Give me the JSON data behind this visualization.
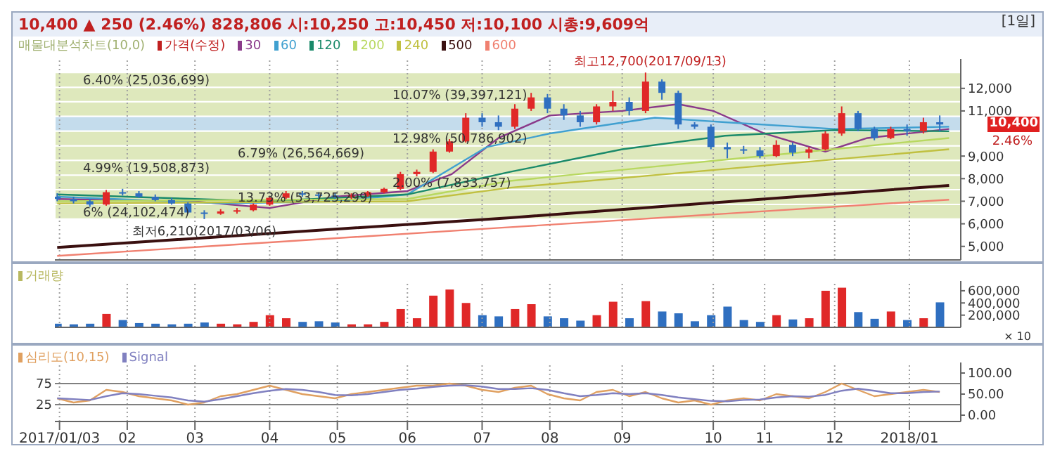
{
  "chart_data": [
    {
      "type": "candlestick",
      "title": "10,400 ▲ 250 (2.46%)   828,806   시:10,250 고:10,450 저:10,100 시총:9,609억",
      "legend_title": "매물대분석차트(10,0)",
      "legend": "top left",
      "grid": "x",
      "tick_labels": "y",
      "x": [
        "2017-01-02",
        "2017-01-09",
        "2017-01-16",
        "2017-01-23",
        "2017-01-30",
        "2017-02-06",
        "2017-02-13",
        "2017-02-20",
        "2017-02-27",
        "2017-03-06",
        "2017-03-13",
        "2017-03-20",
        "2017-03-27",
        "2017-04-03",
        "2017-04-10",
        "2017-04-17",
        "2017-04-24",
        "2017-05-01",
        "2017-05-08",
        "2017-05-15",
        "2017-05-22",
        "2017-05-29",
        "2017-06-05",
        "2017-06-12",
        "2017-06-19",
        "2017-06-26",
        "2017-07-03",
        "2017-07-10",
        "2017-07-17",
        "2017-07-24",
        "2017-07-31",
        "2017-08-07",
        "2017-08-14",
        "2017-08-21",
        "2017-08-28",
        "2017-09-04",
        "2017-09-11",
        "2017-09-18",
        "2017-09-25",
        "2017-10-02",
        "2017-10-09",
        "2017-10-16",
        "2017-10-23",
        "2017-10-30",
        "2017-11-06",
        "2017-11-13",
        "2017-11-20",
        "2017-11-27",
        "2017-12-04",
        "2017-12-11",
        "2017-12-18",
        "2017-12-25",
        "2018-01-01",
        "2018-01-08",
        "2018-01-15"
      ],
      "xlim": [
        "2017-01-01",
        "2018-01-24"
      ],
      "xticks": [
        {
          "value": "2017-01-03",
          "label": null
        },
        {
          "value": "2017-02-01",
          "label": null
        },
        {
          "value": "2017-03-02",
          "label": null
        },
        {
          "value": "2017-04-03",
          "label": null
        },
        {
          "value": "2017-05-02",
          "label": null
        },
        {
          "value": "2017-06-01",
          "label": null
        },
        {
          "value": "2017-07-03",
          "label": null
        },
        {
          "value": "2017-08-01",
          "label": null
        },
        {
          "value": "2017-09-01",
          "label": null
        },
        {
          "value": "2017-10-10",
          "label": null
        },
        {
          "value": "2017-11-01",
          "label": null
        },
        {
          "value": "2017-12-01",
          "label": null
        },
        {
          "value": "2018-01-02",
          "label": null
        }
      ],
      "ylim": [
        4400,
        13300
      ],
      "yticks": [
        {
          "value": 5000,
          "label": "5,000"
        },
        {
          "value": 6000,
          "label": "6,000"
        },
        {
          "value": 7000,
          "label": "7,000"
        },
        {
          "value": 8000,
          "label": "8,000"
        },
        {
          "value": 9000,
          "label": "9,000"
        },
        {
          "value": 11000,
          "label": "11,000"
        },
        {
          "value": 12000,
          "label": "12,000"
        }
      ],
      "bands": [
        {
          "axis": "y",
          "from": 6210,
          "to": 6860,
          "label": "6% (24,102,474)",
          "color": "#c8d890"
        },
        {
          "axis": "y",
          "from": 6860,
          "to": 7510,
          "label": "13.73% (53,725,299)",
          "color": "#c8d890"
        },
        {
          "axis": "y",
          "from": 7510,
          "to": 8160,
          "label": "2.00% (7,833,757)",
          "color": "#c8d890"
        },
        {
          "axis": "y",
          "from": 8160,
          "to": 8810,
          "label": "4.99% (19,508,873)",
          "color": "#c8d890"
        },
        {
          "axis": "y",
          "from": 8810,
          "to": 9460,
          "label": "6.79% (26,564,669)",
          "color": "#c8d890"
        },
        {
          "axis": "y",
          "from": 9460,
          "to": 10110,
          "label": "12.98% (50,786,902)",
          "color": "#c8d890"
        },
        {
          "axis": "y",
          "from": 10110,
          "to": 10760,
          "label": null,
          "color": "#9cc4e0"
        },
        {
          "axis": "y",
          "from": 10760,
          "to": 11410,
          "label": null,
          "color": "#c8d890"
        },
        {
          "axis": "y",
          "from": 11410,
          "to": 12050,
          "label": "10.07% (39,397,121)",
          "color": "#c8d890"
        },
        {
          "axis": "y",
          "from": 12050,
          "to": 12700,
          "label": "6.40% (25,036,699)",
          "color": "#c8d890"
        }
      ],
      "annotations": [
        {
          "text": "최고12,700(2017/09/13)",
          "x": "2017-09-13",
          "y": 12700
        },
        {
          "text": "최저6,210(2017/03/06)",
          "x": "2017-03-06",
          "y": 6210
        },
        "[1일]",
        "10,400",
        "2.46%"
      ],
      "series": [
        {
          "type": "candlestick",
          "name": "가격(수정)",
          "color": "#c02020",
          "colors": [
            "#2f6fc0",
            "#2f6fc0",
            "#2f6fc0",
            "#e02828",
            "#2f6fc0",
            "#2f6fc0",
            "#2f6fc0",
            "#2f6fc0",
            "#2f6fc0",
            "#2f6fc0",
            "#e02828",
            "#e02828",
            "#e02828",
            "#e02828",
            "#e02828",
            "#2f6fc0",
            "#2f6fc0",
            "#2f6fc0",
            "#e02828",
            "#e02828",
            "#e02828",
            "#e02828",
            "#e02828",
            "#e02828",
            "#e02828",
            "#e02828",
            "#2f6fc0",
            "#2f6fc0",
            "#e02828",
            "#e02828",
            "#2f6fc0",
            "#2f6fc0",
            "#2f6fc0",
            "#e02828",
            "#e02828",
            "#2f6fc0",
            "#e02828",
            "#2f6fc0",
            "#2f6fc0",
            "#2f6fc0",
            "#2f6fc0",
            "#2f6fc0",
            "#2f6fc0",
            "#2f6fc0",
            "#e02828",
            "#2f6fc0",
            "#e02828",
            "#e02828",
            "#e02828",
            "#2f6fc0",
            "#2f6fc0",
            "#e02828",
            "#2f6fc0",
            "#e02828",
            "#2f6fc0"
          ],
          "ohlc": [
            [
              7200,
              7350,
              7000,
              7100
            ],
            [
              7100,
              7200,
              6900,
              7000
            ],
            [
              7000,
              7100,
              6750,
              6850
            ],
            [
              6850,
              7500,
              6800,
              7400
            ],
            [
              7400,
              7550,
              7250,
              7350
            ],
            [
              7350,
              7450,
              7150,
              7200
            ],
            [
              7200,
              7300,
              7000,
              7050
            ],
            [
              7050,
              7150,
              6850,
              6900
            ],
            [
              6900,
              6950,
              6450,
              6500
            ],
            [
              6500,
              6600,
              6210,
              6450
            ],
            [
              6450,
              6650,
              6400,
              6550
            ],
            [
              6550,
              6700,
              6450,
              6600
            ],
            [
              6600,
              6900,
              6550,
              6850
            ],
            [
              6850,
              7200,
              6800,
              7150
            ],
            [
              7150,
              7450,
              7100,
              7350
            ],
            [
              7350,
              7450,
              7200,
              7300
            ],
            [
              7300,
              7400,
              7150,
              7250
            ],
            [
              7250,
              7350,
              7100,
              7200
            ],
            [
              7200,
              7350,
              7100,
              7250
            ],
            [
              7250,
              7450,
              7200,
              7400
            ],
            [
              7400,
              7600,
              7350,
              7550
            ],
            [
              7550,
              8300,
              7500,
              8200
            ],
            [
              8200,
              8400,
              8100,
              8300
            ],
            [
              8300,
              9300,
              8250,
              9200
            ],
            [
              9200,
              9750,
              9150,
              9650
            ],
            [
              9650,
              10900,
              9600,
              10700
            ],
            [
              10700,
              10900,
              10300,
              10500
            ],
            [
              10500,
              10800,
              10150,
              10300
            ],
            [
              10300,
              11300,
              10200,
              11100
            ],
            [
              11100,
              11800,
              11000,
              11600
            ],
            [
              11600,
              11750,
              10900,
              11100
            ],
            [
              11100,
              11300,
              10600,
              10800
            ],
            [
              10800,
              11000,
              10300,
              10500
            ],
            [
              10500,
              11300,
              10400,
              11200
            ],
            [
              11200,
              11900,
              11000,
              11400
            ],
            [
              11400,
              11600,
              10800,
              11000
            ],
            [
              11000,
              12700,
              10900,
              12300
            ],
            [
              12300,
              12400,
              11500,
              11800
            ],
            [
              11800,
              11900,
              10200,
              10400
            ],
            [
              10400,
              10500,
              10200,
              10300
            ],
            [
              10300,
              10400,
              9300,
              9400
            ],
            [
              9400,
              9600,
              8900,
              9300
            ],
            [
              9300,
              9450,
              9100,
              9250
            ],
            [
              9250,
              9400,
              8900,
              9000
            ],
            [
              9000,
              9700,
              8950,
              9500
            ],
            [
              9500,
              9600,
              9000,
              9150
            ],
            [
              9150,
              9400,
              8900,
              9300
            ],
            [
              9300,
              10100,
              9250,
              10000
            ],
            [
              10000,
              11200,
              9900,
              10900
            ],
            [
              10900,
              11000,
              10100,
              10200
            ],
            [
              10200,
              10300,
              9700,
              9800
            ],
            [
              9800,
              10300,
              9750,
              10200
            ],
            [
              10200,
              10400,
              9900,
              10100
            ],
            [
              10100,
              10700,
              10000,
              10500
            ],
            [
              10500,
              10800,
              10100,
              10400
            ]
          ]
        },
        {
          "type": "line",
          "name": "30",
          "color": "#8a3a8a",
          "x": [
            "2017-01-02",
            "2017-03-01",
            "2017-04-03",
            "2017-05-01",
            "2017-06-01",
            "2017-06-20",
            "2017-07-10",
            "2017-08-01",
            "2017-09-01",
            "2017-09-25",
            "2017-10-10",
            "2017-11-01",
            "2017-11-27",
            "2017-12-15",
            "2018-01-19"
          ],
          "values": [
            7100,
            7000,
            6700,
            7200,
            7450,
            8200,
            9800,
            10800,
            11000,
            11300,
            11000,
            10000,
            9200,
            9800,
            10200
          ]
        },
        {
          "type": "line",
          "name": "60",
          "color": "#40a0d0",
          "x": [
            "2017-01-02",
            "2017-03-15",
            "2017-05-01",
            "2017-06-01",
            "2017-07-05",
            "2017-08-01",
            "2017-09-15",
            "2017-10-15",
            "2017-12-01",
            "2018-01-19"
          ],
          "values": [
            7200,
            6900,
            7000,
            7300,
            9400,
            10000,
            10700,
            10500,
            10200,
            10300
          ]
        },
        {
          "type": "line",
          "name": "120",
          "color": "#1a8a6a",
          "x": [
            "2017-01-02",
            "2017-04-01",
            "2017-06-01",
            "2017-07-15",
            "2017-09-01",
            "2017-10-15",
            "2017-12-01",
            "2018-01-19"
          ],
          "values": [
            7300,
            7000,
            7300,
            8300,
            9300,
            9900,
            10150,
            10100
          ]
        },
        {
          "type": "line",
          "name": "200",
          "color": "#b8d860",
          "x": [
            "2017-01-02",
            "2017-06-01",
            "2017-07-15",
            "2017-10-01",
            "2018-01-19"
          ],
          "values": [
            7000,
            7100,
            7900,
            8700,
            9800
          ]
        },
        {
          "type": "line",
          "name": "240",
          "color": "#c0c040",
          "x": [
            "2017-01-02",
            "2017-06-01",
            "2017-07-15",
            "2017-10-01",
            "2018-01-19"
          ],
          "values": [
            6900,
            7000,
            7600,
            8300,
            9300
          ]
        },
        {
          "type": "line",
          "name": "500",
          "color": "#3a1010",
          "x": [
            "2017-01-02",
            "2017-07-15",
            "2018-01-19"
          ],
          "values": [
            4950,
            6270,
            7700
          ]
        },
        {
          "type": "line",
          "name": "600",
          "color": "#f08070",
          "x": [
            "2017-01-02",
            "2017-07-15",
            "2018-01-19"
          ],
          "values": [
            4580,
            5850,
            7070
          ]
        }
      ]
    },
    {
      "type": "bar",
      "legend": "top left",
      "grid": "x",
      "tick_labels": "y",
      "x": [
        "2017-01-02",
        "2017-01-09",
        "2017-01-16",
        "2017-01-23",
        "2017-01-30",
        "2017-02-06",
        "2017-02-13",
        "2017-02-20",
        "2017-02-27",
        "2017-03-06",
        "2017-03-13",
        "2017-03-20",
        "2017-03-27",
        "2017-04-03",
        "2017-04-10",
        "2017-04-17",
        "2017-04-24",
        "2017-05-01",
        "2017-05-08",
        "2017-05-15",
        "2017-05-22",
        "2017-05-29",
        "2017-06-05",
        "2017-06-12",
        "2017-06-19",
        "2017-06-26",
        "2017-07-03",
        "2017-07-10",
        "2017-07-17",
        "2017-07-24",
        "2017-07-31",
        "2017-08-07",
        "2017-08-14",
        "2017-08-21",
        "2017-08-28",
        "2017-09-04",
        "2017-09-11",
        "2017-09-18",
        "2017-09-25",
        "2017-10-02",
        "2017-10-09",
        "2017-10-16",
        "2017-10-23",
        "2017-10-30",
        "2017-11-06",
        "2017-11-13",
        "2017-11-20",
        "2017-11-27",
        "2017-12-04",
        "2017-12-11",
        "2017-12-18",
        "2017-12-25",
        "2018-01-01",
        "2018-01-08",
        "2018-01-15"
      ],
      "xlim": [
        "2017-01-01",
        "2018-01-24"
      ],
      "xticks": [
        {
          "value": "2017-01-03",
          "label": null
        },
        {
          "value": "2017-02-01",
          "label": null
        },
        {
          "value": "2017-03-02",
          "label": null
        },
        {
          "value": "2017-04-03",
          "label": null
        },
        {
          "value": "2017-05-02",
          "label": null
        },
        {
          "value": "2017-06-01",
          "label": null
        },
        {
          "value": "2017-07-03",
          "label": null
        },
        {
          "value": "2017-08-01",
          "label": null
        },
        {
          "value": "2017-09-01",
          "label": null
        },
        {
          "value": "2017-10-10",
          "label": null
        },
        {
          "value": "2017-11-01",
          "label": null
        },
        {
          "value": "2017-12-01",
          "label": null
        },
        {
          "value": "2018-01-02",
          "label": null
        }
      ],
      "ylim": [
        0,
        760000
      ],
      "yticks": [
        {
          "value": 200000,
          "label": "200,000"
        },
        {
          "value": 400000,
          "label": "400,000"
        },
        {
          "value": 600000,
          "label": "600,000"
        }
      ],
      "ylabel": "× 10",
      "series": [
        {
          "name": "거래량",
          "color": "#b8b860",
          "colors": [
            "#2f6fc0",
            "#2f6fc0",
            "#2f6fc0",
            "#e02828",
            "#2f6fc0",
            "#2f6fc0",
            "#2f6fc0",
            "#2f6fc0",
            "#2f6fc0",
            "#2f6fc0",
            "#e02828",
            "#e02828",
            "#e02828",
            "#e02828",
            "#e02828",
            "#2f6fc0",
            "#2f6fc0",
            "#2f6fc0",
            "#e02828",
            "#e02828",
            "#e02828",
            "#e02828",
            "#e02828",
            "#e02828",
            "#e02828",
            "#e02828",
            "#2f6fc0",
            "#2f6fc0",
            "#e02828",
            "#e02828",
            "#2f6fc0",
            "#2f6fc0",
            "#2f6fc0",
            "#e02828",
            "#e02828",
            "#2f6fc0",
            "#e02828",
            "#2f6fc0",
            "#2f6fc0",
            "#2f6fc0",
            "#2f6fc0",
            "#2f6fc0",
            "#2f6fc0",
            "#2f6fc0",
            "#e02828",
            "#2f6fc0",
            "#e02828",
            "#e02828",
            "#e02828",
            "#2f6fc0",
            "#2f6fc0",
            "#e02828",
            "#2f6fc0",
            "#e02828",
            "#2f6fc0"
          ],
          "values": [
            60000,
            50000,
            60000,
            220000,
            120000,
            70000,
            60000,
            50000,
            60000,
            80000,
            60000,
            50000,
            90000,
            200000,
            150000,
            90000,
            100000,
            80000,
            50000,
            50000,
            90000,
            300000,
            150000,
            520000,
            620000,
            400000,
            200000,
            180000,
            300000,
            380000,
            180000,
            150000,
            110000,
            200000,
            420000,
            150000,
            430000,
            260000,
            230000,
            100000,
            200000,
            340000,
            120000,
            90000,
            200000,
            130000,
            150000,
            600000,
            650000,
            250000,
            140000,
            260000,
            120000,
            150000,
            410000
          ]
        }
      ]
    },
    {
      "type": "line",
      "legend": "top left",
      "grid": "x",
      "x": [
        "2017-01-02",
        "2017-01-09",
        "2017-01-16",
        "2017-01-23",
        "2017-01-30",
        "2017-02-06",
        "2017-02-13",
        "2017-02-20",
        "2017-02-27",
        "2017-03-06",
        "2017-03-13",
        "2017-03-20",
        "2017-03-27",
        "2017-04-03",
        "2017-04-10",
        "2017-04-17",
        "2017-04-24",
        "2017-05-01",
        "2017-05-08",
        "2017-05-15",
        "2017-05-22",
        "2017-05-29",
        "2017-06-05",
        "2017-06-12",
        "2017-06-19",
        "2017-06-26",
        "2017-07-03",
        "2017-07-10",
        "2017-07-17",
        "2017-07-24",
        "2017-07-31",
        "2017-08-07",
        "2017-08-14",
        "2017-08-21",
        "2017-08-28",
        "2017-09-04",
        "2017-09-11",
        "2017-09-18",
        "2017-09-25",
        "2017-10-02",
        "2017-10-09",
        "2017-10-16",
        "2017-10-23",
        "2017-10-30",
        "2017-11-06",
        "2017-11-13",
        "2017-11-20",
        "2017-11-27",
        "2017-12-04",
        "2017-12-11",
        "2017-12-18",
        "2017-12-25",
        "2018-01-01",
        "2018-01-08",
        "2018-01-15"
      ],
      "xlim": [
        "2017-01-01",
        "2018-01-24"
      ],
      "xticks": [
        {
          "value": "2017-01-03",
          "label": "2017/01/03"
        },
        {
          "value": "2017-02-01",
          "label": "02"
        },
        {
          "value": "2017-03-02",
          "label": "03"
        },
        {
          "value": "2017-04-03",
          "label": "04"
        },
        {
          "value": "2017-05-02",
          "label": "05"
        },
        {
          "value": "2017-06-01",
          "label": "06"
        },
        {
          "value": "2017-07-03",
          "label": "07"
        },
        {
          "value": "2017-08-01",
          "label": "08"
        },
        {
          "value": "2017-09-01",
          "label": "09"
        },
        {
          "value": "2017-10-10",
          "label": "10"
        },
        {
          "value": "2017-11-01",
          "label": "11"
        },
        {
          "value": "2017-12-01",
          "label": "12"
        },
        {
          "value": "2018-01-02",
          "label": "2018/01"
        }
      ],
      "ylim": [
        -15,
        125
      ],
      "yticks": [
        {
          "value": 0,
          "label": "0.00"
        },
        {
          "value": 50,
          "label": "50.00"
        },
        {
          "value": 100,
          "label": "100.00"
        }
      ],
      "ref_lines": [
        {
          "axis": "y",
          "value": 75,
          "label": "75",
          "color": "#808080"
        },
        {
          "axis": "y",
          "value": 25,
          "label": "25",
          "color": "#808080"
        }
      ],
      "series": [
        {
          "name": "심리도(10,15)",
          "color": "#e0a060",
          "values": [
            40,
            30,
            35,
            60,
            55,
            45,
            40,
            35,
            25,
            30,
            45,
            50,
            60,
            70,
            60,
            50,
            45,
            40,
            50,
            55,
            60,
            65,
            70,
            70,
            75,
            70,
            60,
            55,
            65,
            70,
            50,
            40,
            35,
            55,
            60,
            45,
            55,
            40,
            30,
            35,
            25,
            35,
            40,
            35,
            50,
            45,
            40,
            55,
            75,
            60,
            45,
            50,
            55,
            60,
            55
          ]
        },
        {
          "name": "Signal",
          "color": "#8080c0",
          "values": [
            40,
            38,
            36,
            45,
            52,
            50,
            46,
            42,
            35,
            32,
            38,
            45,
            52,
            58,
            62,
            60,
            55,
            48,
            47,
            50,
            55,
            60,
            63,
            67,
            70,
            71,
            68,
            62,
            62,
            64,
            60,
            52,
            45,
            48,
            52,
            50,
            52,
            48,
            42,
            38,
            34,
            33,
            36,
            37,
            42,
            45,
            44,
            48,
            58,
            63,
            58,
            52,
            52,
            55,
            56
          ]
        }
      ]
    }
  ]
}
